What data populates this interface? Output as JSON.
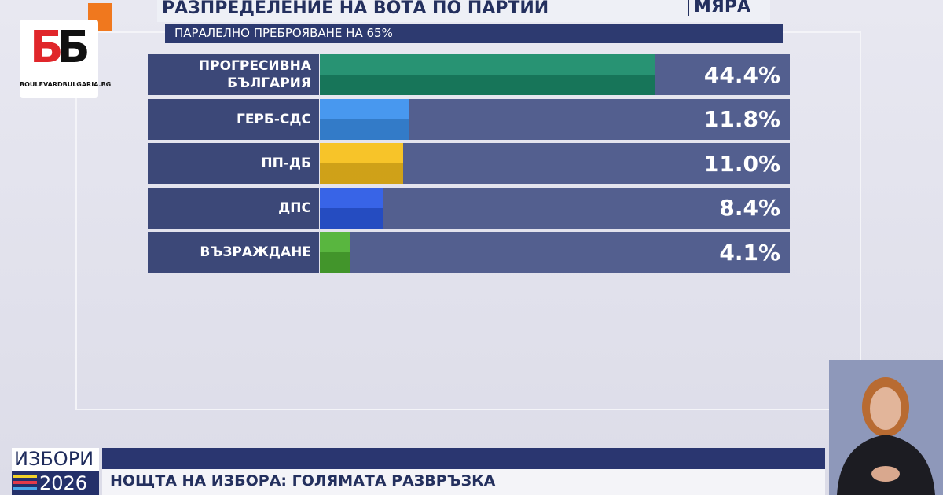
{
  "logo": {
    "left_letter": "Б",
    "right_letter": "Б",
    "site": "BOULEVARDBULGARIA.BG"
  },
  "chart_data": {
    "type": "bar",
    "orientation": "horizontal",
    "title": "РАЗПРЕДЕЛЕНИЕ НА ВОТА ПО ПАРТИИ",
    "subtitle": "ПАРАЛЕЛНО ПРЕБРОЯВАНЕ НА 65%",
    "source": "МЯРА",
    "categories": [
      "ПРОГРЕСИВНА БЪЛГАРИЯ",
      "ГЕРБ-СДС",
      "ПП-ДБ",
      "ДПС",
      "ВЪЗРАЖДАНЕ"
    ],
    "values": [
      44.4,
      11.8,
      11.0,
      8.4,
      4.1
    ],
    "value_labels": [
      "44.4%",
      "11.8%",
      "11.0%",
      "8.4%",
      "4.1%"
    ],
    "colors": [
      "#1b8c6a",
      "#3d92ee",
      "#f7c01c",
      "#2c5ae6",
      "#4fb133"
    ]
  },
  "footer": {
    "election": "ИЗБОРИ",
    "year": "2026",
    "headline": "НОЩТА НА ИЗБОРА: ГОЛЯМАТА РАЗВРЪЗКА"
  }
}
